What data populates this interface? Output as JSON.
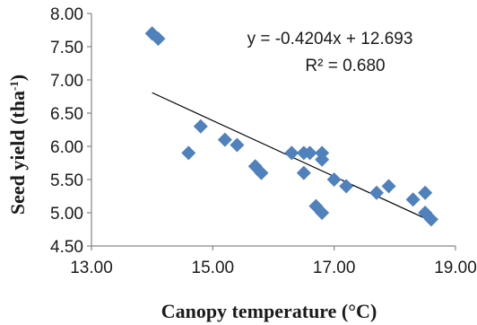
{
  "chart_data": {
    "type": "scatter",
    "title": "",
    "xlabel": "Canopy temperature (°C)",
    "ylabel": "Seed yield (tha-1)",
    "ylabel_parts": {
      "main": "Seed yield (tha",
      "sup": "-1",
      "end": ")"
    },
    "xlim": [
      13.0,
      19.0
    ],
    "ylim": [
      4.5,
      8.0
    ],
    "x_ticks": [
      "13.00",
      "15.00",
      "17.00",
      "19.00"
    ],
    "y_ticks": [
      "4.50",
      "5.00",
      "5.50",
      "6.00",
      "6.50",
      "7.00",
      "7.50",
      "8.00"
    ],
    "grid": false,
    "marker_color": "#4F81BD",
    "trendline_color": "#000000",
    "points": [
      {
        "x": 14.0,
        "y": 7.7
      },
      {
        "x": 14.1,
        "y": 7.62
      },
      {
        "x": 14.6,
        "y": 5.9
      },
      {
        "x": 14.8,
        "y": 6.3
      },
      {
        "x": 15.2,
        "y": 6.1
      },
      {
        "x": 15.4,
        "y": 6.02
      },
      {
        "x": 15.7,
        "y": 5.7
      },
      {
        "x": 15.8,
        "y": 5.6
      },
      {
        "x": 16.3,
        "y": 5.9
      },
      {
        "x": 16.5,
        "y": 5.9
      },
      {
        "x": 16.6,
        "y": 5.9
      },
      {
        "x": 16.5,
        "y": 5.6
      },
      {
        "x": 16.8,
        "y": 5.9
      },
      {
        "x": 16.8,
        "y": 5.8
      },
      {
        "x": 16.7,
        "y": 5.1
      },
      {
        "x": 16.8,
        "y": 5.0
      },
      {
        "x": 17.0,
        "y": 5.5
      },
      {
        "x": 17.2,
        "y": 5.4
      },
      {
        "x": 17.7,
        "y": 5.3
      },
      {
        "x": 17.9,
        "y": 5.4
      },
      {
        "x": 18.3,
        "y": 5.2
      },
      {
        "x": 18.5,
        "y": 5.3
      },
      {
        "x": 18.5,
        "y": 5.0
      },
      {
        "x": 18.6,
        "y": 4.9
      }
    ],
    "trendline": {
      "slope": -0.4204,
      "intercept": 12.693,
      "x_start": 14.0,
      "x_end": 18.6
    },
    "annotations": {
      "equation": "y = -0.4204x + 12.693",
      "r_squared": "R² = 0.680"
    }
  }
}
